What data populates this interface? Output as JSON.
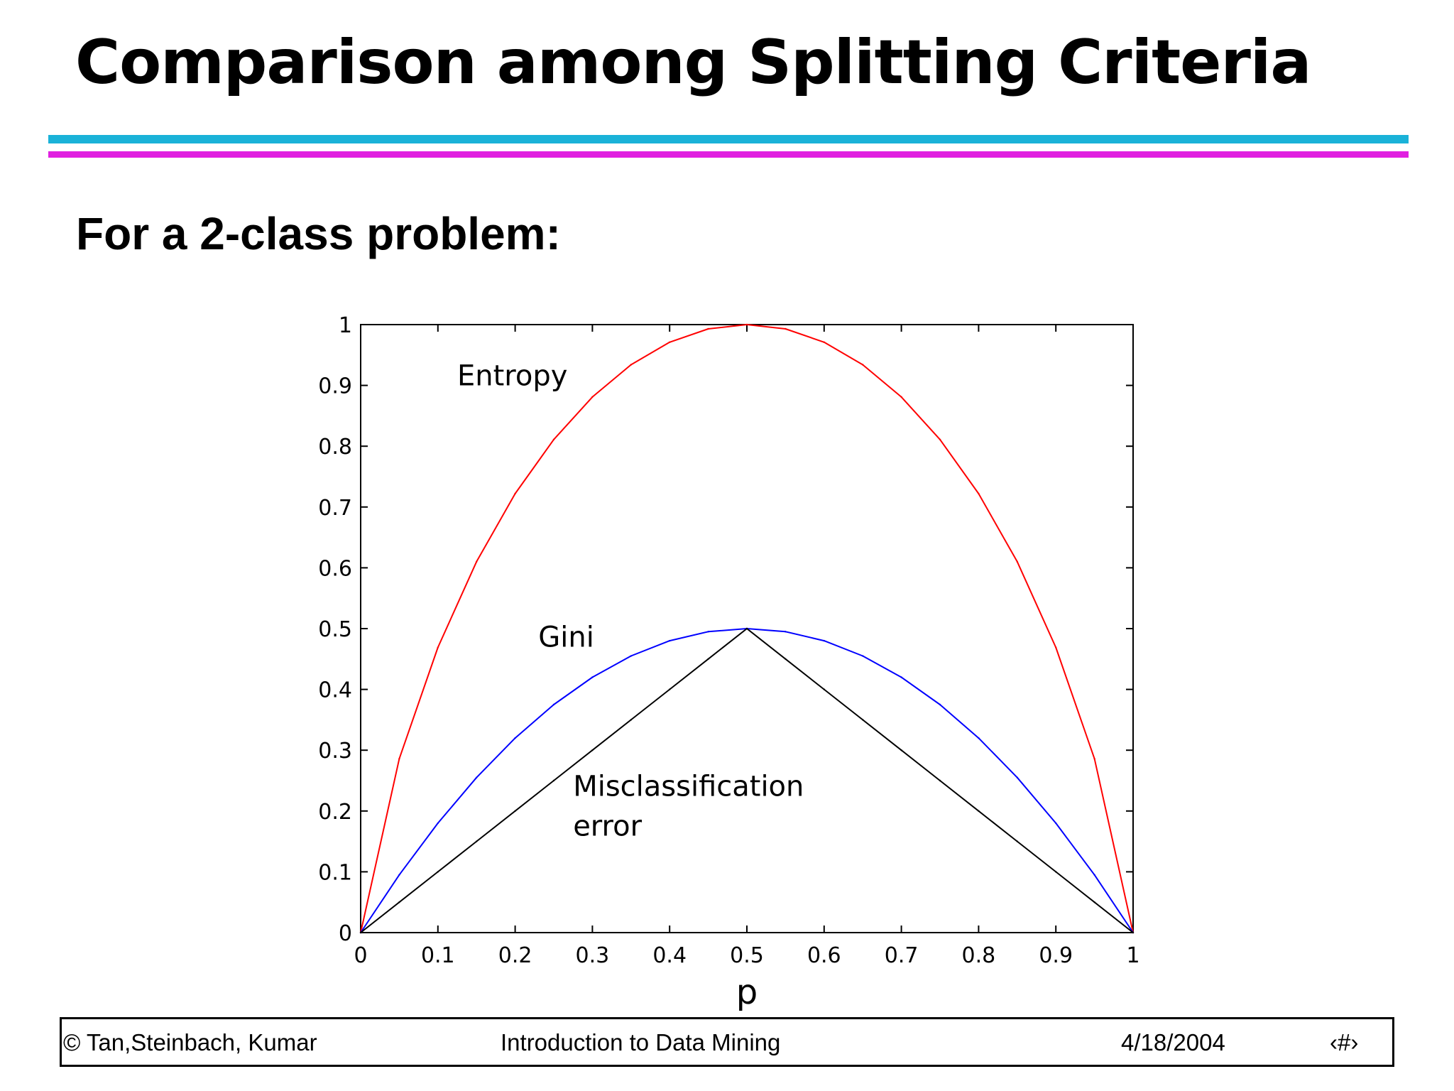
{
  "slide": {
    "title": "Comparison among Splitting Criteria",
    "subtitle": "For a 2-class problem:",
    "rule_colors": [
      "#1ab2d8",
      "#e020e0"
    ]
  },
  "footer": {
    "author": "© Tan,Steinbach, Kumar",
    "course": "Introduction to Data Mining",
    "date": "4/18/2004",
    "page": "‹#›"
  },
  "chart_data": {
    "type": "line",
    "title": "",
    "xlabel": "p",
    "ylabel": "",
    "xlim": [
      0,
      1
    ],
    "ylim": [
      0,
      1
    ],
    "grid": false,
    "legend": "none",
    "x_ticks": [
      "0",
      "0.1",
      "0.2",
      "0.3",
      "0.4",
      "0.5",
      "0.6",
      "0.7",
      "0.8",
      "0.9",
      "1"
    ],
    "y_ticks": [
      "0",
      "0.1",
      "0.2",
      "0.3",
      "0.4",
      "0.5",
      "0.6",
      "0.7",
      "0.8",
      "0.9",
      "1"
    ],
    "x": [
      0,
      0.05,
      0.1,
      0.15,
      0.2,
      0.25,
      0.3,
      0.35,
      0.4,
      0.45,
      0.5,
      0.55,
      0.6,
      0.65,
      0.7,
      0.75,
      0.8,
      0.85,
      0.9,
      0.95,
      1
    ],
    "series": [
      {
        "name": "Entropy",
        "color": "#ff0000",
        "values": [
          0,
          0.286,
          0.469,
          0.61,
          0.722,
          0.811,
          0.881,
          0.934,
          0.971,
          0.993,
          1.0,
          0.993,
          0.971,
          0.934,
          0.881,
          0.811,
          0.722,
          0.61,
          0.469,
          0.286,
          0
        ]
      },
      {
        "name": "Gini",
        "color": "#0000ff",
        "values": [
          0,
          0.095,
          0.18,
          0.255,
          0.32,
          0.375,
          0.42,
          0.455,
          0.48,
          0.495,
          0.5,
          0.495,
          0.48,
          0.455,
          0.42,
          0.375,
          0.32,
          0.255,
          0.18,
          0.095,
          0
        ]
      },
      {
        "name": "Misclassification error",
        "color": "#000000",
        "values": [
          0,
          0.05,
          0.1,
          0.15,
          0.2,
          0.25,
          0.3,
          0.35,
          0.4,
          0.45,
          0.5,
          0.45,
          0.4,
          0.35,
          0.3,
          0.25,
          0.2,
          0.15,
          0.1,
          0.05,
          0
        ]
      }
    ],
    "annotations": [
      {
        "lines": [
          "Entropy"
        ],
        "x": 0.125,
        "y": 0.9
      },
      {
        "lines": [
          "Gini"
        ],
        "x": 0.23,
        "y": 0.47
      },
      {
        "lines": [
          "Misclassification",
          "error"
        ],
        "x": 0.275,
        "y": 0.225
      }
    ]
  }
}
